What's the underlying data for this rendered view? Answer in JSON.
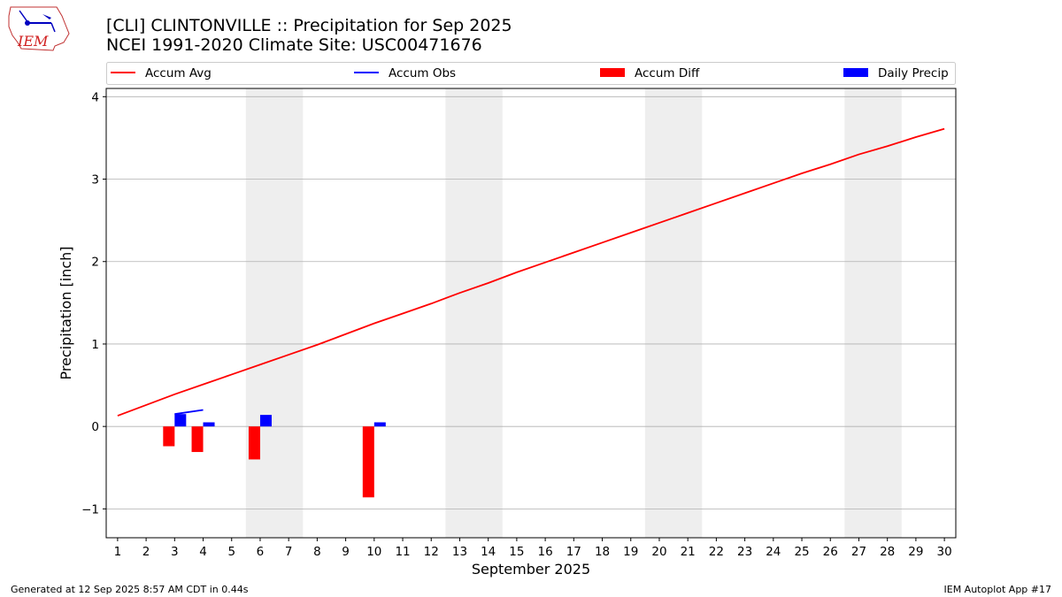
{
  "header": {
    "title": "[CLI] CLINTONVILLE :: Precipitation for Sep 2025",
    "subtitle": "NCEI 1991-2020 Climate Site: USC00471676",
    "logo_text": "IEM"
  },
  "footer": {
    "generated": "Generated at 12 Sep 2025 8:57 AM CDT in 0.44s",
    "app": "IEM Autoplot App #17"
  },
  "colors": {
    "accum_avg": "#ff0000",
    "accum_obs": "#0000ff",
    "accum_diff": "#ff0000",
    "daily_precip": "#0000ff",
    "weekend_shade": "#eeeeee",
    "grid": "#b0b0b0"
  },
  "chart_data": {
    "type": "bar",
    "xlabel": "September 2025",
    "ylabel": "Precipitation [inch]",
    "xlim": [
      0.6,
      30.4
    ],
    "ylim": [
      -1.35,
      4.1
    ],
    "yticks": [
      -1,
      0,
      1,
      2,
      3,
      4
    ],
    "ytick_labels": [
      "−1",
      "0",
      "1",
      "2",
      "3",
      "4"
    ],
    "days": [
      1,
      2,
      3,
      4,
      5,
      6,
      7,
      8,
      9,
      10,
      11,
      12,
      13,
      14,
      15,
      16,
      17,
      18,
      19,
      20,
      21,
      22,
      23,
      24,
      25,
      26,
      27,
      28,
      29,
      30
    ],
    "weekend_spans": [
      [
        5.5,
        7.5
      ],
      [
        12.5,
        14.5
      ],
      [
        19.5,
        21.5
      ],
      [
        26.5,
        28.5
      ]
    ],
    "legend": [
      {
        "label": "Accum Avg",
        "kind": "line",
        "color": "#ff0000"
      },
      {
        "label": "Accum Obs",
        "kind": "line",
        "color": "#0000ff"
      },
      {
        "label": "Accum Diff",
        "kind": "bar",
        "color": "#ff0000"
      },
      {
        "label": "Daily Precip",
        "kind": "bar",
        "color": "#0000ff"
      }
    ],
    "series": [
      {
        "name": "Accum Avg",
        "type": "line",
        "x": [
          1,
          2,
          3,
          4,
          5,
          6,
          7,
          8,
          9,
          10,
          11,
          12,
          13,
          14,
          15,
          16,
          17,
          18,
          19,
          20,
          21,
          22,
          23,
          24,
          25,
          26,
          27,
          28,
          29,
          30
        ],
        "values": [
          0.13,
          0.26,
          0.39,
          0.51,
          0.63,
          0.75,
          0.87,
          0.99,
          1.12,
          1.25,
          1.37,
          1.49,
          1.62,
          1.74,
          1.87,
          1.99,
          2.11,
          2.23,
          2.35,
          2.47,
          2.59,
          2.71,
          2.83,
          2.95,
          3.07,
          3.18,
          3.3,
          3.4,
          3.51,
          3.61
        ]
      },
      {
        "name": "Accum Obs",
        "type": "line",
        "x": [
          3,
          4
        ],
        "values": [
          0.15,
          0.2
        ]
      },
      {
        "name": "Accum Diff",
        "type": "bar",
        "x": [
          3,
          4,
          6,
          10
        ],
        "values": [
          -0.24,
          -0.31,
          -0.4,
          -0.86
        ]
      },
      {
        "name": "Daily Precip",
        "type": "bar",
        "x": [
          3,
          4,
          6,
          10
        ],
        "values": [
          0.15,
          0.05,
          0.14,
          0.05
        ]
      }
    ]
  }
}
